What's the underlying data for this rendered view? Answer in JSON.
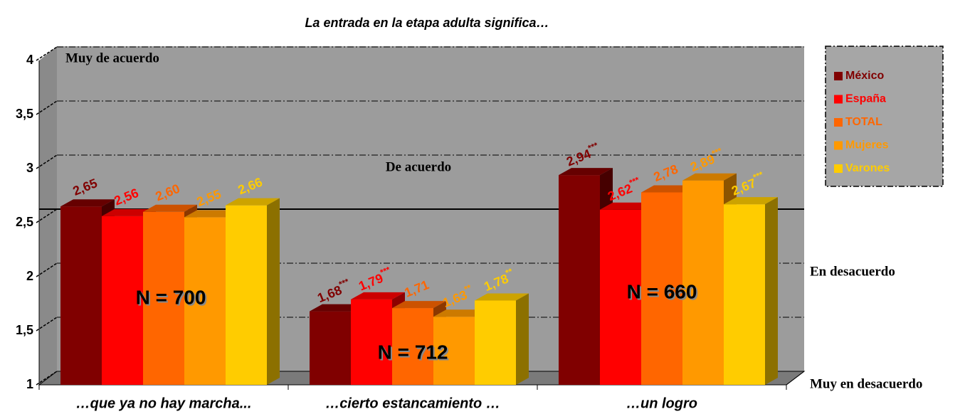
{
  "chart_data": {
    "type": "bar3d",
    "title": "La entrada en la etapa adulta significa…",
    "categories": [
      "…que ya no hay marcha...",
      "…cierto estancamiento …",
      "…un logro"
    ],
    "series": [
      {
        "name": "México",
        "color": "#800000",
        "values": [
          2.65,
          1.68,
          2.94
        ],
        "value_labels": [
          "2,65",
          "1,68***",
          "2,94***"
        ]
      },
      {
        "name": "España",
        "color": "#ff0000",
        "values": [
          2.56,
          1.79,
          2.62
        ],
        "value_labels": [
          "2,56",
          "1,79***",
          "2,62***"
        ]
      },
      {
        "name": "TOTAL",
        "color": "#ff6600",
        "values": [
          2.6,
          1.71,
          2.78
        ],
        "value_labels": [
          "2,60",
          "1,71",
          "2,78"
        ]
      },
      {
        "name": "Mujeres",
        "color": "#ff9900",
        "values": [
          2.55,
          1.63,
          2.89
        ],
        "value_labels": [
          "2,55",
          "1,63**",
          "2,89***"
        ]
      },
      {
        "name": "Varones",
        "color": "#ffcc00",
        "values": [
          2.66,
          1.78,
          2.67
        ],
        "value_labels": [
          "2,66",
          "1,78**",
          "2,67***"
        ]
      }
    ],
    "ylim": [
      1,
      4
    ],
    "yticks": [
      1,
      {
        "value": 1.5,
        "label": "1,5"
      },
      2,
      {
        "value": 2.5,
        "label": "2,5"
      },
      3,
      {
        "value": 3.5,
        "label": "3,5"
      },
      4
    ],
    "grid": true,
    "reference_line": 2.5,
    "scale_labels": [
      "Muy de acuerdo",
      "De acuerdo",
      "En desacuerdo",
      "Muy en desacuerdo"
    ],
    "n_labels": [
      "N = 700",
      "N = 712",
      "N = 660"
    ],
    "legend_position": "top-right"
  }
}
